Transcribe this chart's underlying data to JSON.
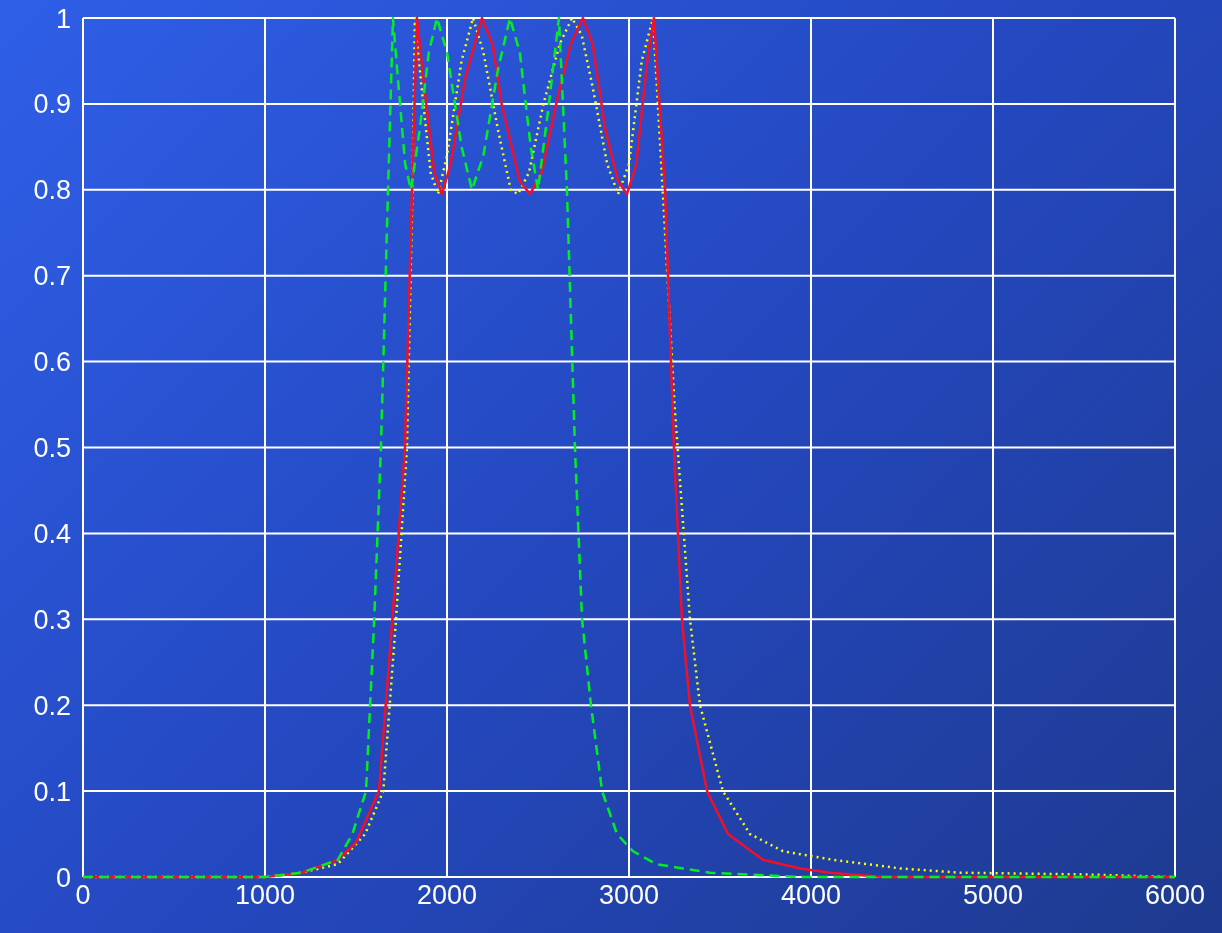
{
  "chart_data": {
    "type": "line",
    "xlim": [
      0,
      6000
    ],
    "xticks": [
      0,
      1000,
      2000,
      3000,
      4000,
      5000,
      6000
    ],
    "ylim": [
      0,
      1
    ],
    "yticks": [
      0,
      0.1,
      0.2,
      0.3,
      0.4,
      0.5,
      0.6,
      0.7,
      0.8,
      0.9,
      1
    ],
    "grid": true,
    "marker": "none",
    "series": [
      {
        "color": "#00ee22",
        "line_style": "dashed",
        "x": [
          0,
          1000,
          1200,
          1400,
          1480,
          1555,
          1600,
          1637,
          1676,
          1703,
          1730,
          1770,
          1802,
          1850,
          1900,
          1945,
          2000,
          2080,
          2137,
          2200,
          2280,
          2346,
          2400,
          2460,
          2500,
          2560,
          2615,
          2659,
          2703,
          2742,
          2791,
          2852,
          2934,
          3022,
          3150,
          3297,
          3445,
          3940,
          6000
        ],
        "values": [
          0,
          0,
          0.005,
          0.02,
          0.05,
          0.1,
          0.3,
          0.5,
          0.8,
          1,
          0.93,
          0.83,
          0.8,
          0.87,
          0.96,
          1,
          0.96,
          0.85,
          0.8,
          0.84,
          0.94,
          1,
          0.96,
          0.85,
          0.8,
          0.9,
          1,
          0.8,
          0.5,
          0.3,
          0.2,
          0.1,
          0.05,
          0.03,
          0.015,
          0.01,
          0.005,
          0,
          0
        ]
      },
      {
        "color": "#ffff00",
        "line_style": "dotted",
        "x": [
          0,
          1000,
          1200,
          1400,
          1550,
          1650,
          1720,
          1780,
          1810,
          1824,
          1860,
          1910,
          1951,
          2000,
          2080,
          2143,
          2200,
          2280,
          2350,
          2390,
          2450,
          2530,
          2620,
          2687,
          2740,
          2800,
          2880,
          2940,
          3000,
          3070,
          3132,
          3185,
          3250,
          3335,
          3390,
          3516,
          3665,
          3846,
          4121,
          4489,
          4818,
          5500,
          6000
        ],
        "values": [
          0,
          0,
          0.005,
          0.015,
          0.05,
          0.1,
          0.3,
          0.5,
          0.8,
          1,
          0.92,
          0.82,
          0.795,
          0.84,
          0.95,
          1,
          0.96,
          0.87,
          0.8,
          0.795,
          0.82,
          0.9,
          0.97,
          1,
          0.98,
          0.92,
          0.83,
          0.795,
          0.83,
          0.95,
          1,
          0.8,
          0.55,
          0.3,
          0.2,
          0.1,
          0.05,
          0.03,
          0.02,
          0.01,
          0.005,
          0.003,
          0
        ]
      },
      {
        "color": "#f0102a",
        "line_style": "solid",
        "x": [
          0,
          1000,
          1200,
          1400,
          1500,
          1626,
          1700,
          1769,
          1808,
          1835,
          1870,
          1930,
          1973,
          2020,
          2100,
          2192,
          2250,
          2300,
          2400,
          2456,
          2520,
          2600,
          2680,
          2747,
          2800,
          2870,
          2940,
          2989,
          3040,
          3100,
          3137,
          3198,
          3247,
          3291,
          3335,
          3429,
          3544,
          3736,
          3940,
          4104,
          4400,
          6000
        ],
        "values": [
          0,
          0,
          0.005,
          0.02,
          0.04,
          0.1,
          0.3,
          0.5,
          0.8,
          1,
          0.93,
          0.82,
          0.795,
          0.83,
          0.93,
          1,
          0.97,
          0.9,
          0.81,
          0.795,
          0.82,
          0.9,
          0.97,
          1,
          0.97,
          0.87,
          0.81,
          0.795,
          0.83,
          0.95,
          1,
          0.8,
          0.5,
          0.3,
          0.2,
          0.1,
          0.05,
          0.02,
          0.01,
          0.005,
          0,
          0
        ]
      }
    ]
  }
}
